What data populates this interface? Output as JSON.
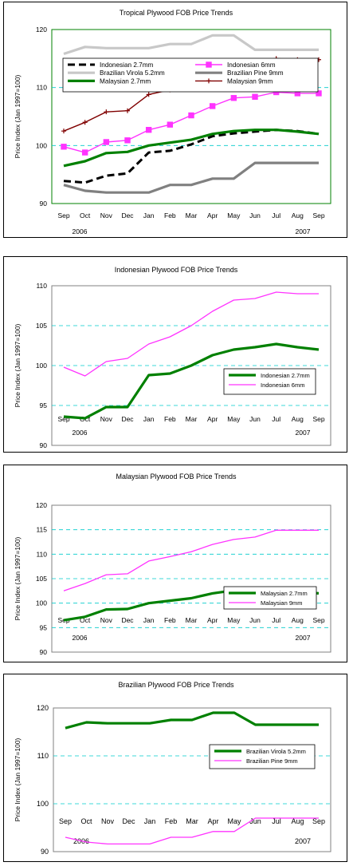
{
  "chart_data": [
    {
      "type": "line",
      "title": "Tropical Plywood FOB Price Trends",
      "ylabel": "Price Index (Jan 1997=100)",
      "xlabel": "",
      "ylim": [
        90,
        120
      ],
      "yticks": [
        90,
        100,
        110,
        120
      ],
      "grid": true,
      "legend": "top-left-inside",
      "categories": [
        "Sep",
        "Oct",
        "Nov",
        "Dec",
        "Jan",
        "Feb",
        "Mar",
        "Apr",
        "May",
        "Jun",
        "Jul",
        "Aug",
        "Sep"
      ],
      "year_labels": [
        "2006",
        "2007"
      ],
      "series": [
        {
          "name": "Indonesian 2.7mm",
          "color": "#000000",
          "style": "dash",
          "values": [
            93.9,
            93.6,
            94.8,
            95.2,
            98.8,
            99.1,
            100.2,
            101.6,
            102.1,
            102.4,
            102.7,
            102.5,
            102.0
          ]
        },
        {
          "name": "Indonesian 6mm",
          "color": "#ff33ff",
          "style": "square",
          "values": [
            99.8,
            98.8,
            100.6,
            100.9,
            102.7,
            103.6,
            105.2,
            106.8,
            108.2,
            108.4,
            109.2,
            109.0,
            109.0
          ]
        },
        {
          "name": "Brazilian Virola 5.2mm",
          "color": "#c8c8c8",
          "style": "thick",
          "values": [
            115.8,
            117.0,
            116.8,
            116.8,
            116.8,
            117.5,
            117.5,
            119.0,
            119.0,
            116.5,
            116.5,
            116.5,
            116.5
          ]
        },
        {
          "name": "Brazilian Pine 9mm",
          "color": "#808080",
          "style": "thick",
          "values": [
            93.2,
            92.2,
            91.9,
            91.9,
            91.9,
            93.2,
            93.2,
            94.3,
            94.3,
            97.0,
            97.0,
            97.0,
            97.0
          ]
        },
        {
          "name": "Malaysian 2.7mm",
          "color": "#008000",
          "style": "thick",
          "values": [
            96.5,
            97.3,
            98.7,
            98.9,
            100.0,
            100.5,
            101.0,
            102.0,
            102.5,
            102.7,
            102.7,
            102.4,
            102.0
          ]
        },
        {
          "name": "Malaysian 9mm",
          "color": "#800000",
          "style": "plus",
          "values": [
            102.5,
            104.0,
            105.8,
            106.0,
            108.8,
            109.6,
            110.5,
            111.8,
            113.0,
            113.5,
            115.0,
            114.8,
            114.8
          ]
        }
      ]
    },
    {
      "type": "line",
      "title": "Indonesian Plywood FOB Price Trends",
      "ylabel": "Price Index (Jan 1997=100)",
      "xlabel": "",
      "ylim": [
        90,
        110
      ],
      "yticks": [
        90,
        95,
        100,
        105,
        110
      ],
      "grid": true,
      "legend": "bottom-right-inside",
      "categories": [
        "Sep",
        "Oct",
        "Nov",
        "Dec",
        "Jan",
        "Feb",
        "Mar",
        "Apr",
        "May",
        "Jun",
        "Jul",
        "Aug",
        "Sep"
      ],
      "year_labels": [
        "2006",
        "2007"
      ],
      "series": [
        {
          "name": "Indonesian 2.7mm",
          "color": "#008000",
          "style": "thick",
          "values": [
            93.6,
            93.4,
            94.8,
            94.8,
            98.8,
            99.0,
            100.0,
            101.3,
            102.0,
            102.3,
            102.7,
            102.3,
            102.0
          ]
        },
        {
          "name": "Indonesian 6mm",
          "color": "#ff33ff",
          "style": "thin",
          "values": [
            99.8,
            98.7,
            100.5,
            100.9,
            102.7,
            103.6,
            105.0,
            106.8,
            108.2,
            108.4,
            109.2,
            109.0,
            109.0
          ]
        }
      ]
    },
    {
      "type": "line",
      "title": "Malaysian Plywood FOB Price Trends",
      "ylabel": "Price Index (Jan 1997=100)",
      "xlabel": "",
      "ylim": [
        90,
        120
      ],
      "yticks": [
        90,
        95,
        100,
        105,
        110,
        115,
        120
      ],
      "grid": true,
      "legend": "bottom-right-inside",
      "categories": [
        "Sep",
        "Oct",
        "Nov",
        "Dec",
        "Jan",
        "Feb",
        "Mar",
        "Apr",
        "May",
        "Jun",
        "Jul",
        "Aug",
        "Sep"
      ],
      "year_labels": [
        "2006",
        "2007"
      ],
      "series": [
        {
          "name": "Malaysian 2.7mm",
          "color": "#008000",
          "style": "thick",
          "values": [
            96.5,
            97.2,
            98.7,
            98.8,
            100.0,
            100.5,
            101.0,
            102.0,
            102.6,
            102.7,
            102.7,
            102.3,
            102.0
          ]
        },
        {
          "name": "Malaysian 9mm",
          "color": "#ff33ff",
          "style": "thin",
          "values": [
            102.5,
            104.0,
            105.8,
            106.0,
            108.6,
            109.5,
            110.5,
            112.0,
            113.0,
            113.5,
            114.9,
            114.9,
            114.9
          ]
        }
      ]
    },
    {
      "type": "line",
      "title": "Brazilian Plywood FOB Price Trends",
      "ylabel": "Price Index (Jan 1997=100)",
      "xlabel": "",
      "ylim": [
        90,
        120
      ],
      "yticks": [
        90,
        100,
        110,
        120
      ],
      "grid": true,
      "legend": "middle-right-inside",
      "categories": [
        "Sep",
        "Oct",
        "Nov",
        "Dec",
        "Jan",
        "Feb",
        "Mar",
        "Apr",
        "May",
        "Jun",
        "Jul",
        "Aug",
        "Sep"
      ],
      "year_labels": [
        "2006",
        "2007"
      ],
      "series": [
        {
          "name": "Brazilian Virola 5.2mm",
          "color": "#008000",
          "style": "thick",
          "values": [
            115.8,
            117.0,
            116.8,
            116.8,
            116.8,
            117.5,
            117.5,
            119.0,
            119.0,
            116.5,
            116.5,
            116.5,
            116.5
          ]
        },
        {
          "name": "Brazilian Pine 9mm",
          "color": "#ff33ff",
          "style": "thin",
          "values": [
            93.0,
            92.0,
            91.6,
            91.6,
            91.6,
            93.0,
            93.0,
            94.2,
            94.2,
            97.0,
            97.0,
            97.0,
            97.0
          ]
        }
      ]
    }
  ]
}
